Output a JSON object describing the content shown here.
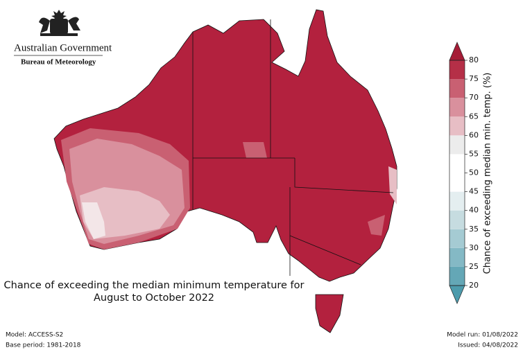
{
  "header": {
    "agency": "Australian Government",
    "bureau": "Bureau of Meteorology"
  },
  "map": {
    "caption": [
      "Chance of exceeding the median minimum temperature for",
      "August to October 2022"
    ]
  },
  "colorbar": {
    "label": "Chance of exceeding median min. temp. (%)",
    "lim": [
      20,
      80
    ],
    "ticks": [
      20,
      25,
      30,
      35,
      40,
      45,
      50,
      55,
      60,
      65,
      70,
      75,
      80
    ],
    "colors": [
      "#64a7b6",
      "#84b9c5",
      "#a5cbd3",
      "#c6dce0",
      "#e4eef0",
      "#ffffff",
      "#ffffff",
      "#ececec",
      "#e7bec5",
      "#d9909d",
      "#c96072",
      "#b52f47"
    ],
    "under_color": "#4d9bac",
    "over_color": "#a51c36"
  },
  "footer": {
    "model": "Model: ACCESS-S2",
    "base_period": "Base period: 1981-2018",
    "model_run": "Model run: 01/08/2022",
    "issued": "Issued: 04/08/2022"
  }
}
